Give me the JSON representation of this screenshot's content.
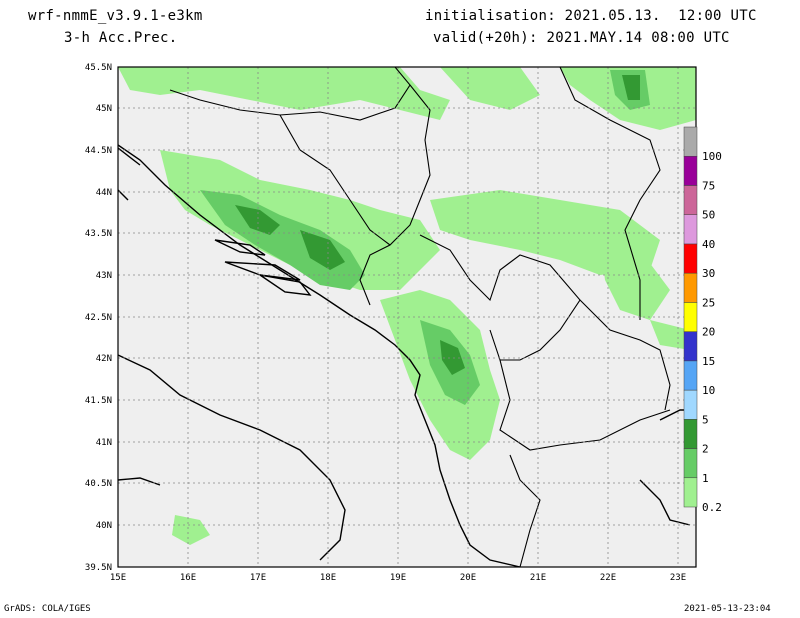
{
  "header": {
    "model": "wrf-nmmE_v3.9.1-e3km",
    "field": "3-h Acc.Prec.",
    "initialisation": "initialisation: 2021.05.13.  12:00 UTC",
    "valid": "valid(+20h): 2021.MAY.14 08:00 UTC"
  },
  "map": {
    "lat_ticks": [
      "45.5N",
      "45N",
      "44.5N",
      "44N",
      "43.5N",
      "43N",
      "42.5N",
      "42N",
      "41.5N",
      "41N",
      "40.5N",
      "40N",
      "39.5N"
    ],
    "lon_ticks": [
      "15E",
      "16E",
      "17E",
      "18E",
      "19E",
      "20E",
      "21E",
      "22E",
      "23E"
    ],
    "lat_range": [
      39.5,
      45.5
    ],
    "lon_range": [
      15,
      23.25
    ],
    "grid": "dotted",
    "sea_color": "#eeeeee",
    "coast_color": "#000000"
  },
  "colorbar": {
    "labels": [
      "0.2",
      "1",
      "2",
      "5",
      "10",
      "15",
      "20",
      "25",
      "30",
      "40",
      "50",
      "75",
      "100"
    ],
    "colors": [
      "#a0f090",
      "#66cc66",
      "#339933",
      "#a0d8ff",
      "#55a5f5",
      "#3333cc",
      "#ffff00",
      "#ff9900",
      "#ff0000",
      "#dd99dd",
      "#cc6699",
      "#990099",
      "#aaaaaa"
    ]
  },
  "footer": {
    "left": "GrADS: COLA/IGES",
    "right": "2021-05-13-23:04"
  }
}
